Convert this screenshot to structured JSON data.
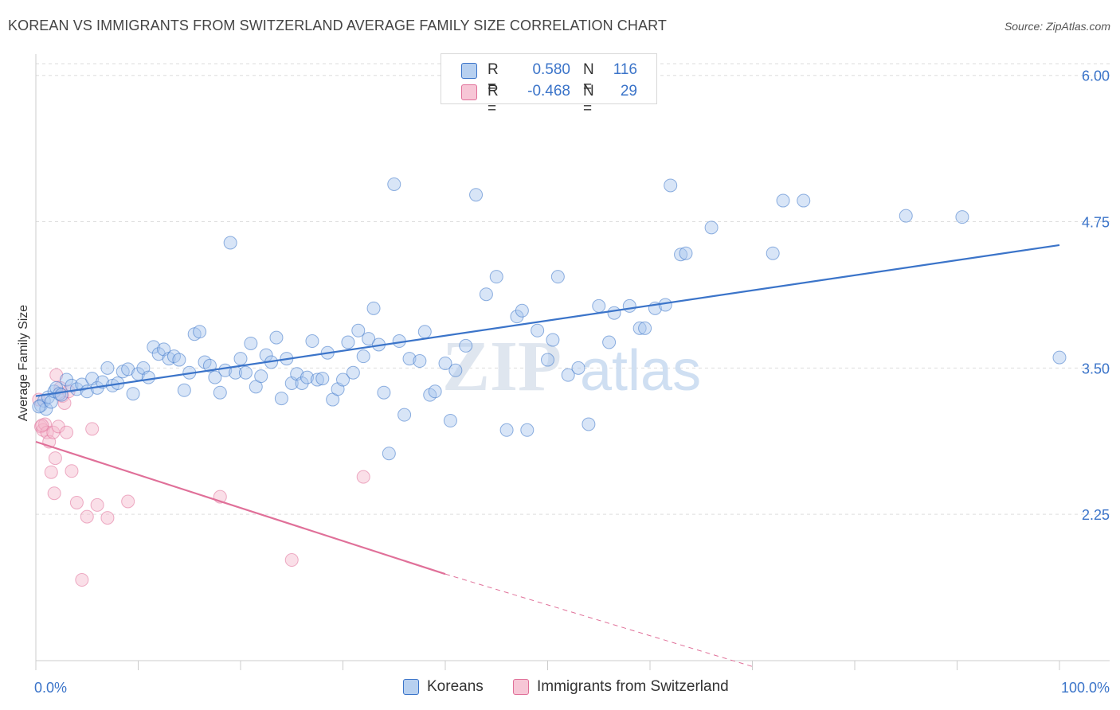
{
  "title": "KOREAN VS IMMIGRANTS FROM SWITZERLAND AVERAGE FAMILY SIZE CORRELATION CHART",
  "source": "Source: ZipAtlas.com",
  "watermark": {
    "zip": "ZIP",
    "atlas": "atlas"
  },
  "colors": {
    "blue": "#3b74c9",
    "blue_fill": "#a9c6ee",
    "pink": "#e07099",
    "pink_fill": "#f5b8cc",
    "grid": "#dddddd"
  },
  "legend": {
    "rows": [
      {
        "r_label": "R =",
        "r_value": "0.580",
        "n_label": "N =",
        "n_value": "116"
      },
      {
        "r_label": "R =",
        "r_value": "-0.468",
        "n_label": "N =",
        "n_value": "29"
      }
    ]
  },
  "chart_data": {
    "type": "scatter",
    "title": "KOREAN VS IMMIGRANTS FROM SWITZERLAND AVERAGE FAMILY SIZE CORRELATION CHART",
    "xlabel": "",
    "ylabel": "Average Family Size",
    "xlim": [
      0,
      100
    ],
    "ylim": [
      1.0,
      6.1
    ],
    "x_tick_labels": [
      "0.0%",
      "100.0%"
    ],
    "y_ticks": [
      2.25,
      3.5,
      4.75,
      6.0
    ],
    "y_tick_labels": [
      "2.25",
      "3.50",
      "4.75",
      "6.00"
    ],
    "grid": true,
    "legend_position": "top-center",
    "series": [
      {
        "name": "Koreans",
        "color": "#3b74c9",
        "trend": {
          "x": [
            0,
            100
          ],
          "y": [
            3.26,
            4.55
          ]
        },
        "points": [
          [
            0.5,
            3.18
          ],
          [
            0.8,
            3.22
          ],
          [
            1.0,
            3.15
          ],
          [
            1.2,
            3.25
          ],
          [
            1.5,
            3.21
          ],
          [
            1.8,
            3.3
          ],
          [
            2.0,
            3.33
          ],
          [
            2.3,
            3.28
          ],
          [
            2.5,
            3.27
          ],
          [
            3.0,
            3.4
          ],
          [
            3.5,
            3.35
          ],
          [
            4.0,
            3.32
          ],
          [
            4.5,
            3.36
          ],
          [
            5.0,
            3.3
          ],
          [
            5.5,
            3.41
          ],
          [
            6.0,
            3.33
          ],
          [
            6.5,
            3.38
          ],
          [
            7.0,
            3.5
          ],
          [
            7.5,
            3.35
          ],
          [
            8.0,
            3.37
          ],
          [
            8.5,
            3.47
          ],
          [
            9.0,
            3.49
          ],
          [
            9.5,
            3.28
          ],
          [
            10.0,
            3.45
          ],
          [
            10.5,
            3.5
          ],
          [
            11.0,
            3.42
          ],
          [
            11.5,
            3.68
          ],
          [
            12.0,
            3.62
          ],
          [
            12.5,
            3.66
          ],
          [
            13.0,
            3.58
          ],
          [
            13.5,
            3.6
          ],
          [
            14.0,
            3.57
          ],
          [
            14.5,
            3.31
          ],
          [
            15.0,
            3.46
          ],
          [
            15.5,
            3.79
          ],
          [
            16.0,
            3.81
          ],
          [
            16.5,
            3.55
          ],
          [
            17.0,
            3.52
          ],
          [
            17.5,
            3.42
          ],
          [
            18.0,
            3.29
          ],
          [
            18.5,
            3.48
          ],
          [
            19.0,
            4.57
          ],
          [
            19.5,
            3.46
          ],
          [
            20.0,
            3.58
          ],
          [
            20.5,
            3.46
          ],
          [
            21.0,
            3.71
          ],
          [
            21.5,
            3.34
          ],
          [
            22.0,
            3.43
          ],
          [
            22.5,
            3.61
          ],
          [
            23.0,
            3.55
          ],
          [
            23.5,
            3.76
          ],
          [
            24.0,
            3.24
          ],
          [
            24.5,
            3.58
          ],
          [
            25.0,
            3.37
          ],
          [
            25.5,
            3.45
          ],
          [
            26.0,
            3.37
          ],
          [
            26.5,
            3.42
          ],
          [
            27.0,
            3.73
          ],
          [
            27.5,
            3.4
          ],
          [
            28.0,
            3.41
          ],
          [
            28.5,
            3.63
          ],
          [
            29.0,
            3.23
          ],
          [
            29.5,
            3.32
          ],
          [
            30.0,
            3.4
          ],
          [
            30.5,
            3.72
          ],
          [
            31.0,
            3.46
          ],
          [
            31.5,
            3.82
          ],
          [
            32.0,
            3.6
          ],
          [
            32.5,
            3.75
          ],
          [
            33.0,
            4.01
          ],
          [
            33.5,
            3.7
          ],
          [
            34.0,
            3.29
          ],
          [
            34.5,
            2.77
          ],
          [
            35.0,
            5.07
          ],
          [
            35.5,
            3.73
          ],
          [
            36.0,
            3.1
          ],
          [
            36.5,
            3.58
          ],
          [
            37.5,
            3.56
          ],
          [
            38.0,
            3.81
          ],
          [
            38.5,
            3.27
          ],
          [
            39.0,
            3.3
          ],
          [
            40.0,
            3.54
          ],
          [
            40.5,
            3.05
          ],
          [
            41.0,
            3.48
          ],
          [
            42.0,
            3.69
          ],
          [
            43.0,
            4.98
          ],
          [
            44.0,
            4.13
          ],
          [
            45.0,
            4.28
          ],
          [
            46.0,
            2.97
          ],
          [
            47.0,
            3.94
          ],
          [
            47.5,
            3.99
          ],
          [
            48.0,
            2.97
          ],
          [
            49.0,
            3.82
          ],
          [
            50.0,
            3.57
          ],
          [
            50.5,
            3.74
          ],
          [
            51.0,
            4.28
          ],
          [
            52.0,
            3.44
          ],
          [
            53.0,
            3.5
          ],
          [
            54.0,
            3.02
          ],
          [
            55.0,
            4.03
          ],
          [
            56.0,
            3.72
          ],
          [
            56.5,
            3.97
          ],
          [
            58.0,
            4.03
          ],
          [
            59.0,
            3.84
          ],
          [
            59.5,
            3.84
          ],
          [
            60.5,
            4.01
          ],
          [
            61.5,
            4.04
          ],
          [
            62.0,
            5.06
          ],
          [
            63.0,
            4.47
          ],
          [
            63.5,
            4.48
          ],
          [
            66.0,
            4.7
          ],
          [
            72.0,
            4.48
          ],
          [
            73.0,
            4.93
          ],
          [
            75.0,
            4.93
          ],
          [
            85.0,
            4.8
          ],
          [
            90.5,
            4.79
          ],
          [
            100.0,
            3.59
          ],
          [
            0.3,
            3.17
          ]
        ]
      },
      {
        "name": "Immigrants from Switzerland",
        "color": "#e07099",
        "trend": {
          "x": [
            0,
            40
          ],
          "y": [
            2.87,
            1.74
          ]
        },
        "trend_dashed": {
          "x": [
            40,
            70
          ],
          "y": [
            1.74,
            0.95
          ]
        },
        "points": [
          [
            0.3,
            3.23
          ],
          [
            0.5,
            3.0
          ],
          [
            0.7,
            2.97
          ],
          [
            0.9,
            3.02
          ],
          [
            1.1,
            2.95
          ],
          [
            1.3,
            2.87
          ],
          [
            1.5,
            2.61
          ],
          [
            1.7,
            2.95
          ],
          [
            1.8,
            2.43
          ],
          [
            1.9,
            2.73
          ],
          [
            2.0,
            3.44
          ],
          [
            2.2,
            3.0
          ],
          [
            2.4,
            3.33
          ],
          [
            2.6,
            3.26
          ],
          [
            2.8,
            3.2
          ],
          [
            3.0,
            2.95
          ],
          [
            3.2,
            3.3
          ],
          [
            3.5,
            2.62
          ],
          [
            4.0,
            2.35
          ],
          [
            4.5,
            1.69
          ],
          [
            5.0,
            2.23
          ],
          [
            5.5,
            2.98
          ],
          [
            6.0,
            2.33
          ],
          [
            7.0,
            2.22
          ],
          [
            9.0,
            2.36
          ],
          [
            18.0,
            2.4
          ],
          [
            25.0,
            1.86
          ],
          [
            32.0,
            2.57
          ],
          [
            0.6,
            3.01
          ]
        ]
      }
    ]
  },
  "legend_bottom": [
    "Koreans",
    "Immigrants from Switzerland"
  ]
}
